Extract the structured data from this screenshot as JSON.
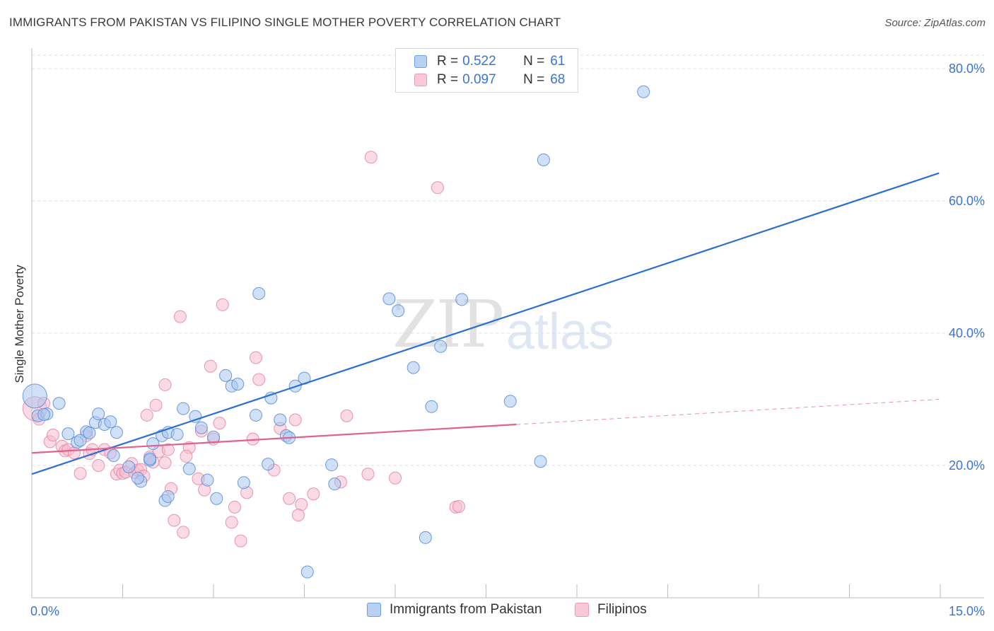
{
  "title": "IMMIGRANTS FROM PAKISTAN VS FILIPINO SINGLE MOTHER POVERTY CORRELATION CHART",
  "source": "Source: ZipAtlas.com",
  "watermark": {
    "zip": "ZIP",
    "atlas": "atlas"
  },
  "legend": {
    "rows": [
      {
        "r_label": "R = ",
        "r_value": "0.522",
        "n_label": "N = ",
        "n_value": "61"
      },
      {
        "r_label": "R = ",
        "r_value": "0.097",
        "n_label": "N = ",
        "n_value": "68"
      }
    ]
  },
  "colors": {
    "blue_fill": "#a9c6f0",
    "blue_stroke": "#5b8fd8",
    "blue_line": "#2b6fd1",
    "pink_fill": "#f6bccd",
    "pink_stroke": "#e48aa8",
    "pink_line": "#e0628e",
    "axis_text": "#3b74d1",
    "grid": "#dcdcdc"
  },
  "chart_data": {
    "type": "scatter",
    "title": "IMMIGRANTS FROM PAKISTAN VS FILIPINO SINGLE MOTHER POVERTY CORRELATION CHART",
    "xlabel": "",
    "ylabel": "Single Mother Poverty",
    "xlim": [
      0,
      15
    ],
    "ylim": [
      0,
      80
    ],
    "x_tick_labels": [
      "0.0%",
      "15.0%"
    ],
    "y_ticks": [
      20,
      40,
      60,
      80
    ],
    "y_tick_labels": [
      "20.0%",
      "40.0%",
      "60.0%",
      "80.0%"
    ],
    "grid": true,
    "legend_position": "bottom",
    "series": [
      {
        "name": "Immigrants from Pakistan",
        "color": "#5b8fd8",
        "trend": {
          "x": [
            0,
            14.98
          ],
          "y": [
            18.7,
            64.2
          ]
        },
        "points": [
          [
            0.05,
            30.5
          ],
          [
            0.1,
            27.5
          ],
          [
            0.25,
            27.8
          ],
          [
            0.45,
            29.4
          ],
          [
            0.6,
            24.8
          ],
          [
            0.75,
            23.5
          ],
          [
            0.9,
            25.1
          ],
          [
            0.8,
            23.8
          ],
          [
            1.05,
            26.5
          ],
          [
            1.1,
            27.8
          ],
          [
            1.2,
            26.2
          ],
          [
            1.4,
            25.0
          ],
          [
            1.35,
            21.5
          ],
          [
            1.6,
            19.8
          ],
          [
            1.8,
            17.6
          ],
          [
            1.75,
            18.1
          ],
          [
            1.95,
            20.8
          ],
          [
            2.0,
            23.3
          ],
          [
            2.15,
            24.5
          ],
          [
            2.25,
            25.0
          ],
          [
            2.2,
            14.7
          ],
          [
            2.4,
            24.7
          ],
          [
            2.5,
            28.6
          ],
          [
            2.6,
            19.5
          ],
          [
            2.7,
            27.4
          ],
          [
            2.8,
            25.7
          ],
          [
            2.9,
            17.8
          ],
          [
            3.0,
            24.3
          ],
          [
            3.05,
            15.0
          ],
          [
            3.3,
            32.0
          ],
          [
            3.4,
            32.3
          ],
          [
            3.5,
            17.4
          ],
          [
            3.7,
            27.6
          ],
          [
            3.75,
            46.0
          ],
          [
            3.9,
            20.2
          ],
          [
            3.95,
            30.2
          ],
          [
            4.1,
            26.9
          ],
          [
            4.2,
            24.5
          ],
          [
            4.25,
            24.2
          ],
          [
            4.35,
            32.0
          ],
          [
            4.5,
            33.2
          ],
          [
            4.55,
            3.9
          ],
          [
            4.95,
            20.1
          ],
          [
            5.0,
            17.2
          ],
          [
            5.9,
            45.2
          ],
          [
            6.05,
            43.4
          ],
          [
            6.3,
            34.8
          ],
          [
            6.5,
            9.1
          ],
          [
            6.6,
            28.9
          ],
          [
            6.75,
            38.0
          ],
          [
            7.1,
            45.1
          ],
          [
            7.9,
            29.7
          ],
          [
            8.4,
            20.6
          ],
          [
            8.45,
            66.2
          ],
          [
            10.1,
            76.5
          ],
          [
            0.2,
            27.7
          ],
          [
            1.3,
            26.6
          ],
          [
            2.25,
            15.3
          ],
          [
            3.2,
            33.6
          ],
          [
            1.95,
            21.0
          ],
          [
            0.95,
            24.9
          ]
        ]
      },
      {
        "name": "Filipinos",
        "color": "#e48aa8",
        "trend": {
          "x": [
            0,
            8.0
          ],
          "y": [
            21.9,
            26.2
          ]
        },
        "trend_dashed": {
          "x": [
            8.0,
            14.98
          ],
          "y": [
            26.2,
            30.0
          ]
        },
        "points": [
          [
            0.05,
            28.6
          ],
          [
            0.12,
            27.0
          ],
          [
            0.2,
            29.4
          ],
          [
            0.3,
            23.6
          ],
          [
            0.35,
            24.6
          ],
          [
            0.5,
            22.9
          ],
          [
            0.55,
            22.2
          ],
          [
            0.6,
            22.4
          ],
          [
            0.7,
            21.9
          ],
          [
            0.8,
            18.8
          ],
          [
            0.9,
            24.5
          ],
          [
            0.95,
            21.8
          ],
          [
            1.0,
            22.4
          ],
          [
            1.1,
            20.0
          ],
          [
            1.2,
            22.4
          ],
          [
            1.3,
            21.9
          ],
          [
            1.4,
            18.7
          ],
          [
            1.45,
            19.3
          ],
          [
            1.5,
            18.8
          ],
          [
            1.55,
            19.0
          ],
          [
            1.65,
            20.3
          ],
          [
            1.7,
            18.9
          ],
          [
            1.75,
            19.3
          ],
          [
            1.8,
            19.4
          ],
          [
            1.85,
            18.4
          ],
          [
            1.9,
            27.6
          ],
          [
            1.95,
            21.3
          ],
          [
            2.0,
            20.5
          ],
          [
            2.1,
            22.1
          ],
          [
            2.05,
            29.1
          ],
          [
            2.2,
            32.2
          ],
          [
            2.25,
            22.4
          ],
          [
            2.3,
            16.5
          ],
          [
            2.35,
            11.7
          ],
          [
            2.45,
            42.5
          ],
          [
            2.5,
            9.9
          ],
          [
            2.6,
            22.7
          ],
          [
            2.55,
            21.4
          ],
          [
            2.75,
            18.0
          ],
          [
            2.8,
            25.2
          ],
          [
            2.85,
            16.3
          ],
          [
            2.95,
            35.0
          ],
          [
            3.0,
            24.0
          ],
          [
            3.1,
            26.4
          ],
          [
            3.15,
            44.3
          ],
          [
            3.3,
            11.4
          ],
          [
            3.35,
            13.7
          ],
          [
            3.45,
            8.6
          ],
          [
            3.55,
            15.9
          ],
          [
            3.65,
            24.0
          ],
          [
            3.7,
            36.3
          ],
          [
            3.75,
            33.0
          ],
          [
            4.0,
            19.3
          ],
          [
            4.1,
            25.6
          ],
          [
            4.25,
            15.0
          ],
          [
            4.35,
            26.9
          ],
          [
            4.45,
            14.1
          ],
          [
            4.4,
            12.5
          ],
          [
            4.65,
            15.7
          ],
          [
            5.1,
            17.5
          ],
          [
            5.2,
            27.5
          ],
          [
            5.55,
            18.7
          ],
          [
            5.6,
            66.6
          ],
          [
            6.0,
            18.1
          ],
          [
            6.7,
            62.0
          ],
          [
            7.0,
            13.7
          ],
          [
            7.05,
            13.8
          ],
          [
            2.2,
            20.4
          ]
        ]
      }
    ]
  },
  "bottom_legend": [
    {
      "label": "Immigrants from Pakistan"
    },
    {
      "label": "Filipinos"
    }
  ]
}
